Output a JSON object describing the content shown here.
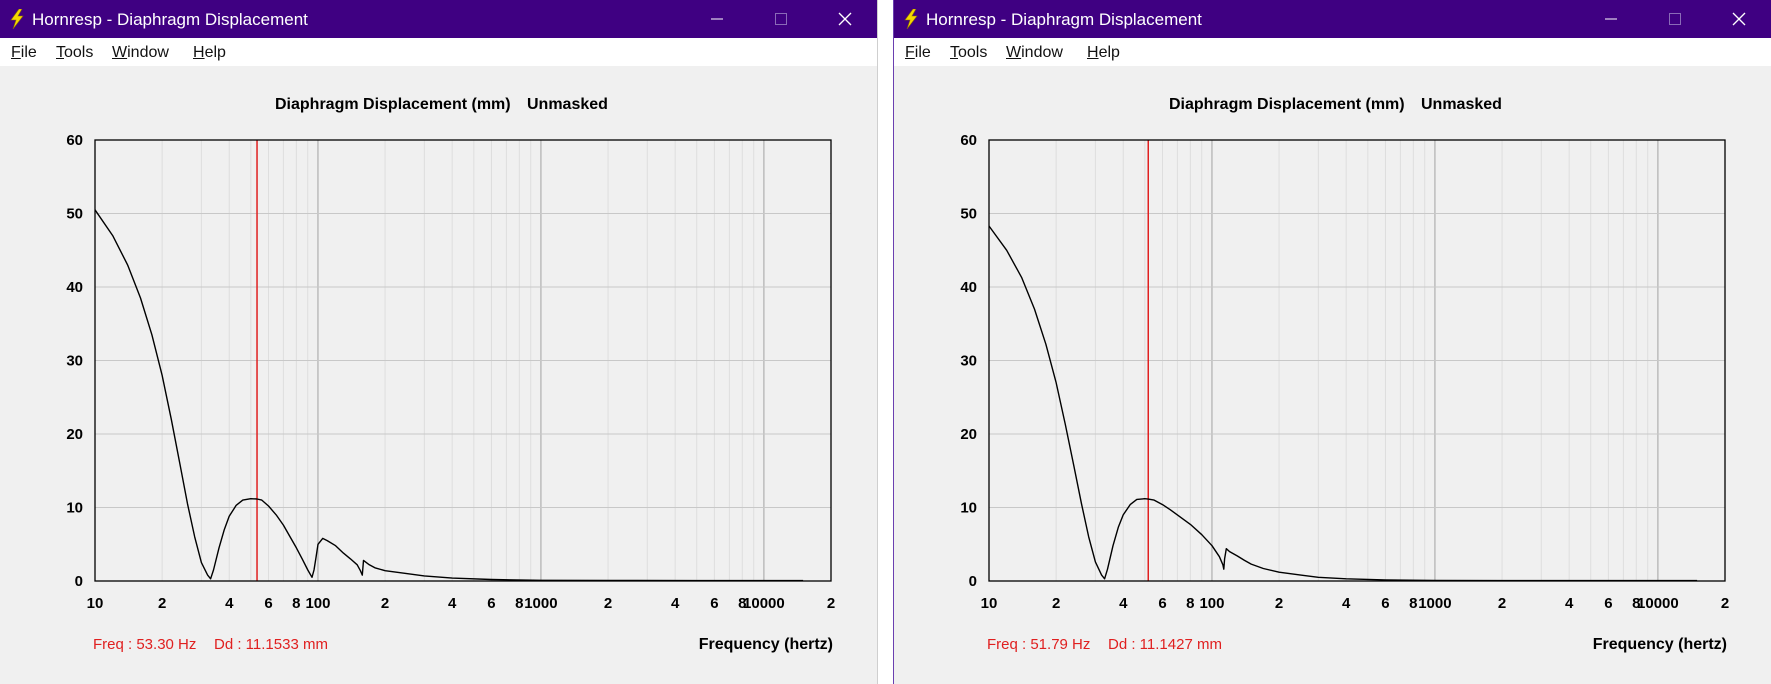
{
  "windows": [
    {
      "id": "left",
      "title": "Hornresp - Diaphragm Displacement",
      "menu": [
        {
          "mnemonic": "F",
          "rest": "ile"
        },
        {
          "mnemonic": "T",
          "rest": "ools"
        },
        {
          "mnemonic": "W",
          "rest": "indow"
        },
        {
          "mnemonic": "H",
          "rest": "elp"
        }
      ],
      "chart_title": "Diaphragm Displacement (mm)",
      "chart_mode": "Unmasked",
      "readout_freq": "Freq : 53.30 Hz",
      "readout_dd": "Dd : 11.1533 mm",
      "xlabel": "Frequency (hertz)"
    },
    {
      "id": "right",
      "title": "Hornresp - Diaphragm Displacement",
      "menu": [
        {
          "mnemonic": "F",
          "rest": "ile"
        },
        {
          "mnemonic": "T",
          "rest": "ools"
        },
        {
          "mnemonic": "W",
          "rest": "indow"
        },
        {
          "mnemonic": "H",
          "rest": "elp"
        }
      ],
      "chart_title": "Diaphragm Displacement (mm)",
      "chart_mode": "Unmasked",
      "readout_freq": "Freq : 51.79 Hz",
      "readout_dd": "Dd : 11.1427 mm",
      "xlabel": "Frequency (hertz)"
    }
  ],
  "colors": {
    "titlebar": "#3f0082",
    "cursor_line": "#e02020",
    "readout_text": "#e02020",
    "curve": "#000000",
    "gridline": "#c8c8c8"
  },
  "icons": {
    "app": "lightning-bolt-icon",
    "minimize": "minimize-icon",
    "maximize": "maximize-icon",
    "close": "close-icon"
  },
  "chart_data": [
    {
      "type": "line",
      "title": "Diaphragm Displacement (mm)   Unmasked",
      "xlabel": "Frequency (hertz)",
      "ylabel": "",
      "xscale": "log",
      "xlim": [
        10,
        20000
      ],
      "ylim": [
        0,
        60
      ],
      "yticks": [
        "0",
        "10",
        "20",
        "30",
        "40",
        "50",
        "60"
      ],
      "xticks": [
        {
          "x": 10,
          "label": "10"
        },
        {
          "x": 20,
          "label": "2"
        },
        {
          "x": 40,
          "label": "4"
        },
        {
          "x": 60,
          "label": "6"
        },
        {
          "x": 80,
          "label": "8"
        },
        {
          "x": 100,
          "label": "100"
        },
        {
          "x": 200,
          "label": "2"
        },
        {
          "x": 400,
          "label": "4"
        },
        {
          "x": 600,
          "label": "6"
        },
        {
          "x": 800,
          "label": "8"
        },
        {
          "x": 1000,
          "label": "1000"
        },
        {
          "x": 2000,
          "label": "2"
        },
        {
          "x": 4000,
          "label": "4"
        },
        {
          "x": 6000,
          "label": "6"
        },
        {
          "x": 8000,
          "label": "8"
        },
        {
          "x": 10000,
          "label": "10000"
        },
        {
          "x": 20000,
          "label": "2"
        }
      ],
      "grid": true,
      "cursor_x": 53.3,
      "series": [
        {
          "x": [
            10,
            12,
            14,
            16,
            18,
            20,
            22,
            24,
            26,
            28,
            30,
            32,
            33,
            34,
            36,
            38,
            40,
            43,
            46,
            50,
            53.3,
            56,
            60,
            65,
            70,
            75,
            80,
            85,
            90,
            94,
            96,
            98,
            100,
            105,
            110,
            120,
            130,
            140,
            150,
            155,
            158,
            160,
            170,
            180,
            200,
            250,
            300,
            400,
            600,
            1000,
            2000,
            5000,
            10000,
            15000
          ],
          "y": [
            50.5,
            47,
            43,
            38.5,
            33.5,
            28,
            22,
            16,
            10.5,
            6,
            2.5,
            0.8,
            0.3,
            1.5,
            4.5,
            7,
            8.8,
            10.3,
            11,
            11.2,
            11.15,
            11,
            10.2,
            9,
            7.6,
            6,
            4.5,
            3,
            1.5,
            0.5,
            1.5,
            3.2,
            5,
            5.8,
            5.5,
            4.8,
            3.8,
            3,
            2.2,
            1.4,
            0.8,
            2.8,
            2.2,
            1.8,
            1.4,
            1,
            0.7,
            0.4,
            0.2,
            0.1,
            0.08,
            0.05,
            0.05,
            0.05
          ]
        }
      ]
    },
    {
      "type": "line",
      "title": "Diaphragm Displacement (mm)   Unmasked",
      "xlabel": "Frequency (hertz)",
      "ylabel": "",
      "xscale": "log",
      "xlim": [
        10,
        20000
      ],
      "ylim": [
        0,
        60
      ],
      "yticks": [
        "0",
        "10",
        "20",
        "30",
        "40",
        "50",
        "60"
      ],
      "xticks": [
        {
          "x": 10,
          "label": "10"
        },
        {
          "x": 20,
          "label": "2"
        },
        {
          "x": 40,
          "label": "4"
        },
        {
          "x": 60,
          "label": "6"
        },
        {
          "x": 80,
          "label": "8"
        },
        {
          "x": 100,
          "label": "100"
        },
        {
          "x": 200,
          "label": "2"
        },
        {
          "x": 400,
          "label": "4"
        },
        {
          "x": 600,
          "label": "6"
        },
        {
          "x": 800,
          "label": "8"
        },
        {
          "x": 1000,
          "label": "1000"
        },
        {
          "x": 2000,
          "label": "2"
        },
        {
          "x": 4000,
          "label": "4"
        },
        {
          "x": 6000,
          "label": "6"
        },
        {
          "x": 8000,
          "label": "8"
        },
        {
          "x": 10000,
          "label": "10000"
        },
        {
          "x": 20000,
          "label": "2"
        }
      ],
      "grid": true,
      "cursor_x": 51.79,
      "series": [
        {
          "x": [
            10,
            12,
            14,
            16,
            18,
            20,
            22,
            24,
            26,
            28,
            30,
            32,
            33,
            34,
            36,
            38,
            40,
            43,
            46,
            50,
            51.79,
            55,
            60,
            65,
            70,
            80,
            90,
            100,
            108,
            112,
            113,
            114,
            116,
            120,
            130,
            140,
            150,
            170,
            200,
            250,
            300,
            400,
            600,
            1000,
            2000,
            5000,
            10000,
            15000
          ],
          "y": [
            48.3,
            45,
            41.3,
            37,
            32.2,
            27,
            21.3,
            15.7,
            10.5,
            6,
            2.6,
            0.8,
            0.3,
            1.6,
            4.8,
            7.3,
            9,
            10.4,
            11.1,
            11.2,
            11.14,
            11,
            10.4,
            9.7,
            9,
            7.7,
            6.3,
            4.8,
            3.3,
            2.2,
            1.6,
            3,
            4.4,
            4,
            3.4,
            2.8,
            2.3,
            1.7,
            1.2,
            0.8,
            0.5,
            0.3,
            0.15,
            0.08,
            0.05,
            0.05,
            0.05,
            0.05
          ]
        }
      ]
    }
  ]
}
